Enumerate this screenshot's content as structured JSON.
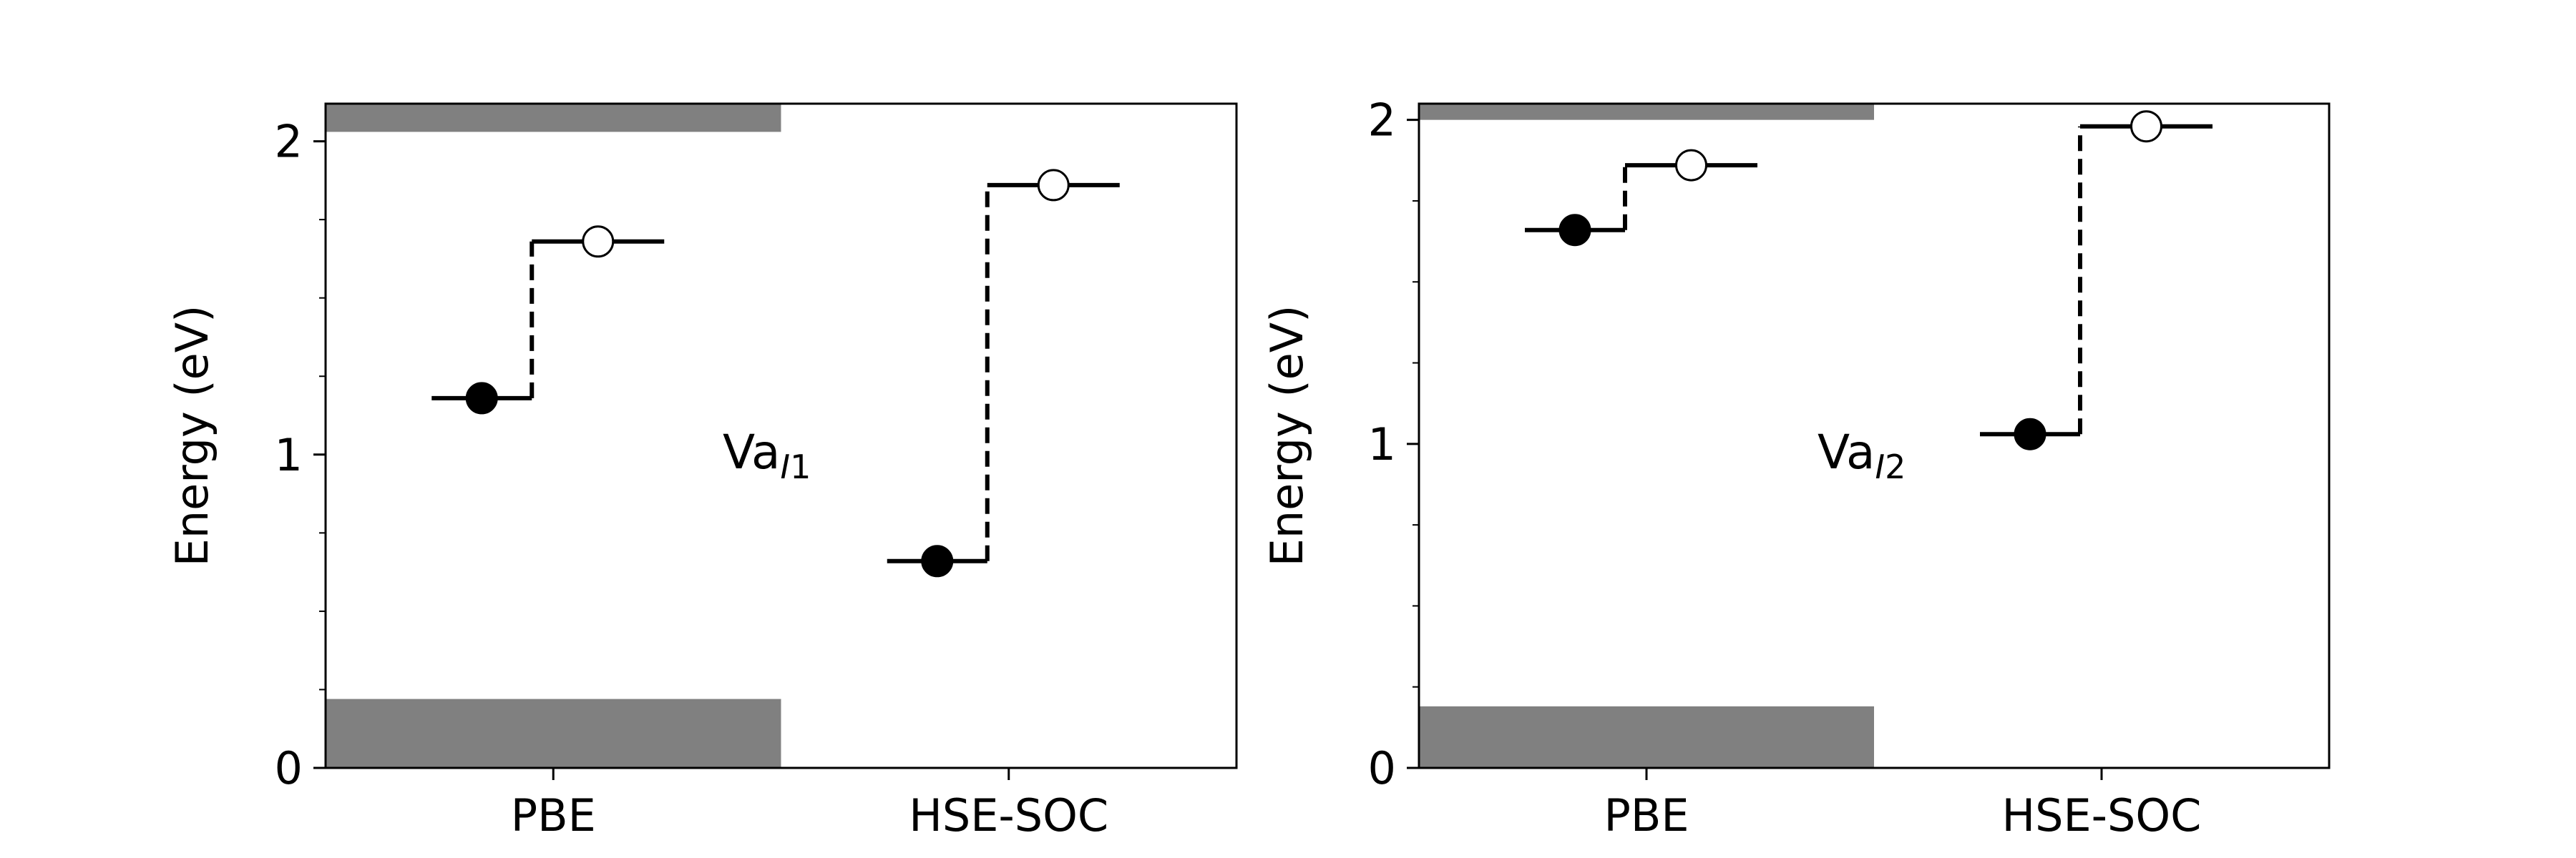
{
  "chart_data": [
    {
      "type": "step",
      "ylabel": "Energy (eV)",
      "categories": [
        "PBE",
        "HSE-SOC"
      ],
      "ylim": [
        0,
        2.12
      ],
      "yticks_major": [
        0,
        1,
        2
      ],
      "yticks_minor": [
        0.25,
        0.5,
        0.75,
        1.25,
        1.5,
        1.75
      ],
      "annotation": {
        "base": "Va",
        "subscript": "I1"
      },
      "bands": [
        {
          "category": "PBE",
          "vbm": 0.22,
          "cbm": 2.03
        }
      ],
      "levels": [
        {
          "category": "PBE",
          "occupied": 1.18,
          "empty": 1.68
        },
        {
          "category": "HSE-SOC",
          "occupied": 0.66,
          "empty": 1.86
        }
      ]
    },
    {
      "type": "step",
      "ylabel": "Energy (eV)",
      "categories": [
        "PBE",
        "HSE-SOC"
      ],
      "ylim": [
        0,
        2.05
      ],
      "yticks_major": [
        0,
        1,
        2
      ],
      "yticks_minor": [
        0.25,
        0.5,
        0.75,
        1.25,
        1.5,
        1.75
      ],
      "annotation": {
        "base": "Va",
        "subscript": "I2"
      },
      "bands": [
        {
          "category": "PBE",
          "vbm": 0.19,
          "cbm": 2.0
        }
      ],
      "levels": [
        {
          "category": "PBE",
          "occupied": 1.66,
          "empty": 1.86
        },
        {
          "category": "HSE-SOC",
          "occupied": 1.03,
          "empty": 1.98
        }
      ]
    }
  ]
}
